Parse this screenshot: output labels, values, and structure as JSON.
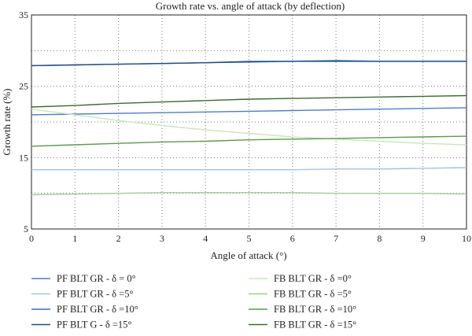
{
  "chart_data": {
    "type": "line",
    "title": "Growth rate vs. angle of attack (by deflection)",
    "xlabel": "Angle of attack (°)",
    "ylabel": "Growth rate (%)",
    "xlim": [
      0,
      10
    ],
    "ylim": [
      5,
      35
    ],
    "x_ticks": [
      0,
      1,
      2,
      3,
      4,
      5,
      6,
      7,
      8,
      9,
      10
    ],
    "y_ticks": [
      5,
      15,
      25,
      35
    ],
    "grid": true,
    "legend_placement": "bottom, two columns",
    "x": [
      0,
      1,
      2,
      3,
      4,
      5,
      6,
      7,
      8,
      9,
      10
    ],
    "series": [
      {
        "name": "PF BLT GR - δ = 0°",
        "color": "#4a7fc9",
        "values": [
          21.0,
          21.1,
          21.2,
          21.3,
          21.4,
          21.5,
          21.6,
          21.7,
          21.8,
          21.9,
          22.0
        ]
      },
      {
        "name": "PF BLT GR - δ =5°",
        "color": "#9fc3e8",
        "values": [
          13.3,
          13.3,
          13.3,
          13.3,
          13.3,
          13.3,
          13.3,
          13.4,
          13.4,
          13.5,
          13.6
        ]
      },
      {
        "name": "PF BLT GR - δ =10°",
        "color": "#2f6db5",
        "values": [
          27.9,
          28.0,
          28.1,
          28.2,
          28.3,
          28.5,
          28.5,
          28.6,
          28.5,
          28.5,
          28.5
        ]
      },
      {
        "name": "PF BLT G - δ =15°",
        "color": "#1f4f88",
        "values": [
          27.9,
          28.0,
          28.1,
          28.2,
          28.3,
          28.4,
          28.5,
          28.5,
          28.5,
          28.5,
          28.5
        ]
      },
      {
        "name": "FB BLT GR - δ =0°",
        "color": "#c9e6c0",
        "values": [
          21.8,
          21.0,
          20.2,
          19.5,
          18.9,
          18.4,
          17.9,
          17.6,
          17.3,
          17.0,
          16.8
        ]
      },
      {
        "name": "FB BLT GR - δ =5°",
        "color": "#9ed18e",
        "values": [
          9.8,
          9.9,
          10.0,
          10.1,
          10.1,
          10.1,
          10.1,
          10.0,
          10.0,
          10.0,
          9.9
        ]
      },
      {
        "name": "FB BLT GR - δ =10°",
        "color": "#5a9c47",
        "values": [
          16.6,
          16.8,
          17.0,
          17.2,
          17.3,
          17.5,
          17.6,
          17.7,
          17.8,
          17.9,
          18.0
        ]
      },
      {
        "name": "FB BLT GR - δ =15°",
        "color": "#3f6b30",
        "values": [
          22.1,
          22.3,
          22.6,
          22.8,
          23.0,
          23.2,
          23.3,
          23.4,
          23.5,
          23.6,
          23.7
        ]
      }
    ]
  }
}
